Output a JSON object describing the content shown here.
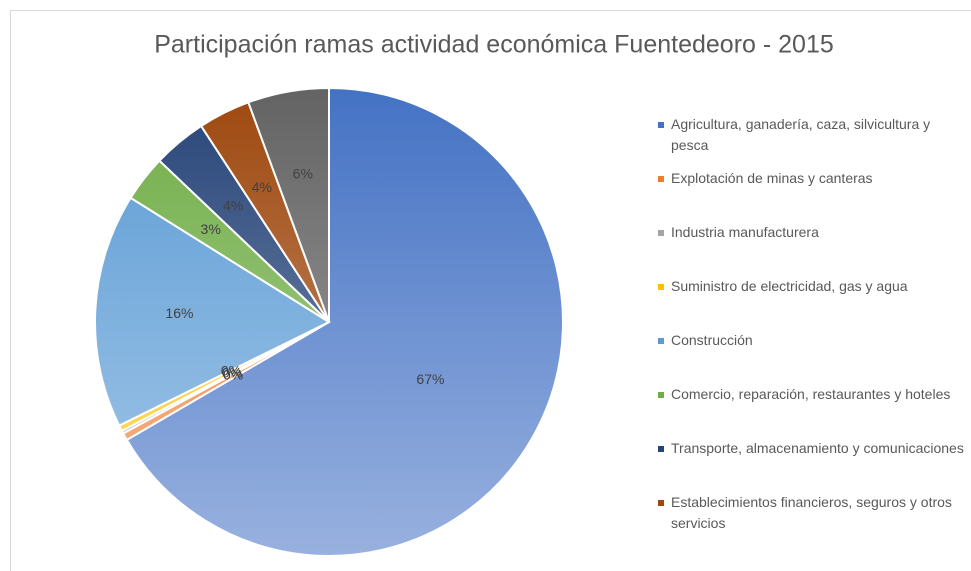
{
  "chart_data": {
    "type": "pie",
    "title": "Participación ramas actividad económica Fuentedeoro - 2015",
    "categories": [
      "Agricultura, ganadería, caza, silvicultura y pesca",
      "Explotación de minas y canteras",
      "Industria manufacturera",
      "Suministro de electricidad, gas y agua",
      "Construcción",
      "Comercio, reparación, restaurantes y hoteles",
      "Transporte, almacenamiento y comunicaciones",
      "Establecimientos financieros, seguros y otros servicios",
      null
    ],
    "values": [
      66.6,
      0.5,
      0.2,
      0.4,
      16.2,
      3.2,
      3.7,
      3.6,
      5.6
    ],
    "value_labels": [
      "67%",
      "0%",
      "0%",
      "0%",
      "16%",
      "3%",
      "4%",
      "4%",
      "6%"
    ],
    "colors": [
      "#4472c4",
      "#ed7d31",
      "#a5a5a5",
      "#ffc000",
      "#5b9bd5",
      "#70ad47",
      "#264478",
      "#9e480e",
      "#636363"
    ],
    "legend": "right"
  }
}
